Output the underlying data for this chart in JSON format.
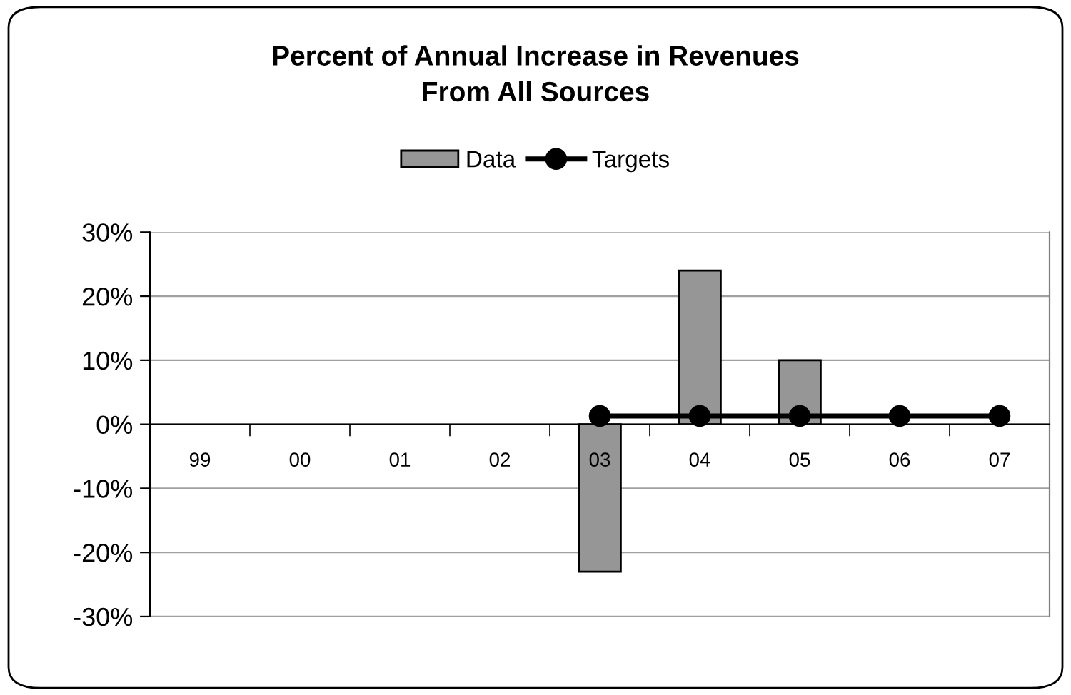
{
  "chart_data": {
    "type": "bar",
    "title": "Percent of Annual Increase in Revenues\nFrom All Sources",
    "categories": [
      "99",
      "00",
      "01",
      "02",
      "03",
      "04",
      "05",
      "06",
      "07"
    ],
    "series": [
      {
        "name": "Data",
        "color": "#969696",
        "values": [
          null,
          null,
          null,
          null,
          -23,
          24,
          10,
          null,
          null
        ]
      },
      {
        "name": "Targets",
        "type": "line",
        "color": "#000000",
        "marker": "circle",
        "values": [
          null,
          null,
          null,
          null,
          1.3,
          1.3,
          1.3,
          1.3,
          1.3
        ]
      }
    ],
    "ylim": [
      -30,
      30
    ],
    "yticks": [
      {
        "value": -30,
        "label": "-30%"
      },
      {
        "value": -20,
        "label": "-20%"
      },
      {
        "value": -10,
        "label": "-10%"
      },
      {
        "value": 0,
        "label": "0%"
      },
      {
        "value": 10,
        "label": "10%"
      },
      {
        "value": 20,
        "label": "20%"
      },
      {
        "value": 30,
        "label": "30%"
      }
    ],
    "grid": "y",
    "legend": "top"
  }
}
